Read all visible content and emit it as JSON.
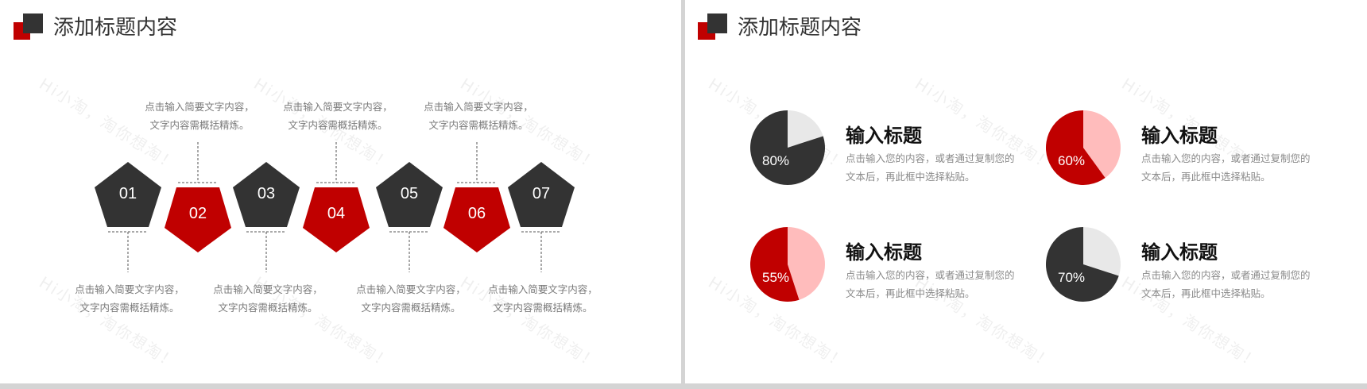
{
  "colors": {
    "red": "#c00000",
    "dark": "#333333",
    "light_gray": "#e8e8e8",
    "pink": "#ffbcbc"
  },
  "watermark": "Hi小淘，淘你想淘！",
  "left_slide": {
    "title": "添加标题内容",
    "steps": [
      {
        "num": "01",
        "color": "dark",
        "caption": [
          "点击输入简要文字内容，",
          "文字内容需概括精炼。"
        ]
      },
      {
        "num": "02",
        "color": "red",
        "caption": [
          "点击输入简要文字内容，",
          "文字内容需概括精炼。"
        ]
      },
      {
        "num": "03",
        "color": "dark",
        "caption": [
          "点击输入简要文字内容，",
          "文字内容需概括精炼。"
        ]
      },
      {
        "num": "04",
        "color": "red",
        "caption": [
          "点击输入简要文字内容，",
          "文字内容需概括精炼。"
        ]
      },
      {
        "num": "05",
        "color": "dark",
        "caption": [
          "点击输入简要文字内容，",
          "文字内容需概括精炼。"
        ]
      },
      {
        "num": "06",
        "color": "red",
        "caption": [
          "点击输入简要文字内容，",
          "文字内容需概括精炼。"
        ]
      },
      {
        "num": "07",
        "color": "dark",
        "caption": [
          "点击输入简要文字内容，",
          "文字内容需概括精炼。"
        ]
      }
    ]
  },
  "right_slide": {
    "title": "添加标题内容",
    "items": [
      {
        "percent": 80,
        "label": "80%",
        "fill": "#333333",
        "rest": "#e8e8e8",
        "title": "输入标题",
        "desc": [
          "点击输入您的内容，或者通过复制您的",
          "文本后，再此框中选择粘贴。"
        ]
      },
      {
        "percent": 60,
        "label": "60%",
        "fill": "#c00000",
        "rest": "#ffbcbc",
        "title": "输入标题",
        "desc": [
          "点击输入您的内容，或者通过复制您的",
          "文本后，再此框中选择粘贴。"
        ]
      },
      {
        "percent": 55,
        "label": "55%",
        "fill": "#c00000",
        "rest": "#ffbcbc",
        "title": "输入标题",
        "desc": [
          "点击输入您的内容，或者通过复制您的",
          "文本后，再此框中选择粘贴。"
        ]
      },
      {
        "percent": 70,
        "label": "70%",
        "fill": "#333333",
        "rest": "#e8e8e8",
        "title": "输入标题",
        "desc": [
          "点击输入您的内容，或者通过复制您的",
          "文本后，再此框中选择粘贴。"
        ]
      }
    ]
  }
}
